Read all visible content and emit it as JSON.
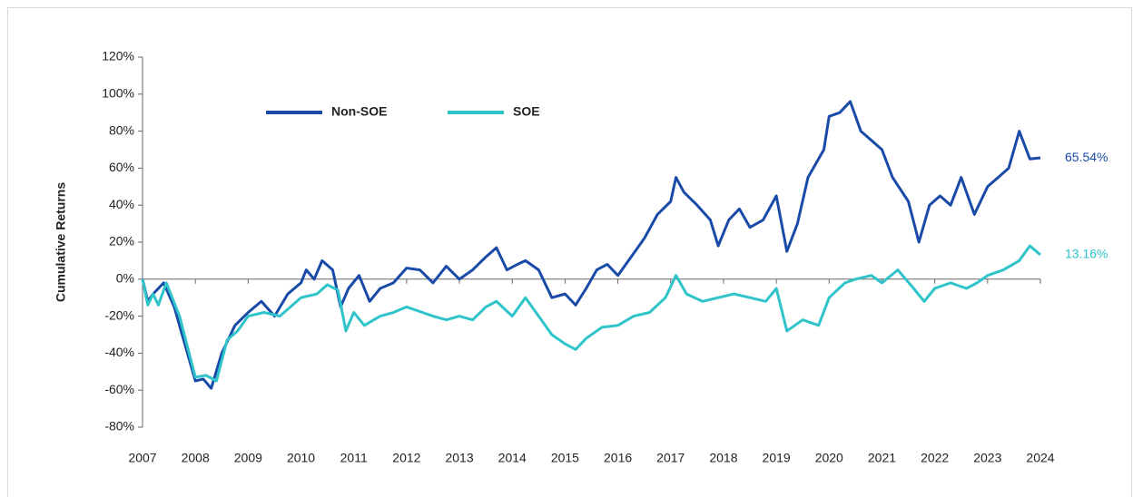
{
  "chart_data": {
    "type": "line",
    "y_label": "Cumulative Returns",
    "xlim": [
      2007,
      2024
    ],
    "xticks": [
      2007,
      2008,
      2009,
      2010,
      2011,
      2012,
      2013,
      2014,
      2015,
      2016,
      2017,
      2018,
      2019,
      2020,
      2021,
      2022,
      2023,
      2024
    ],
    "ylim": [
      -80,
      120
    ],
    "yticks": [
      {
        "value": -80,
        "label": "-80%"
      },
      {
        "value": -60,
        "label": "-60%"
      },
      {
        "value": -40,
        "label": "-40%"
      },
      {
        "value": -20,
        "label": "-20%"
      },
      {
        "value": 0,
        "label": "0%"
      },
      {
        "value": 20,
        "label": "20%"
      },
      {
        "value": 40,
        "label": "40%"
      },
      {
        "value": 60,
        "label": "60%"
      },
      {
        "value": 80,
        "label": "80%"
      },
      {
        "value": 100,
        "label": "100%"
      },
      {
        "value": 120,
        "label": "120%"
      }
    ],
    "grid": false,
    "legend": "upper-left",
    "series": [
      {
        "name": "Non-SOE",
        "color": "#1a4aa8",
        "end_label": "65.54%",
        "x": [
          2007.0,
          2007.1,
          2007.2,
          2007.4,
          2007.6,
          2007.8,
          2008.0,
          2008.15,
          2008.3,
          2008.5,
          2008.75,
          2009.0,
          2009.25,
          2009.5,
          2009.75,
          2010.0,
          2010.1,
          2010.25,
          2010.4,
          2010.6,
          2010.75,
          2010.9,
          2011.1,
          2011.3,
          2011.5,
          2011.75,
          2012.0,
          2012.25,
          2012.5,
          2012.75,
          2013.0,
          2013.25,
          2013.5,
          2013.7,
          2013.9,
          2014.1,
          2014.25,
          2014.5,
          2014.75,
          2015.0,
          2015.2,
          2015.4,
          2015.6,
          2015.8,
          2016.0,
          2016.25,
          2016.5,
          2016.75,
          2017.0,
          2017.1,
          2017.25,
          2017.5,
          2017.75,
          2017.9,
          2018.1,
          2018.3,
          2018.5,
          2018.75,
          2019.0,
          2019.2,
          2019.4,
          2019.6,
          2019.9,
          2020.0,
          2020.2,
          2020.4,
          2020.6,
          2020.8,
          2021.0,
          2021.2,
          2021.5,
          2021.7,
          2021.9,
          2022.1,
          2022.3,
          2022.5,
          2022.75,
          2023.0,
          2023.2,
          2023.4,
          2023.6,
          2023.8,
          2024.0
        ],
        "values": [
          0,
          -12,
          -8,
          -2,
          -15,
          -35,
          -55,
          -54,
          -59,
          -40,
          -25,
          -18,
          -12,
          -20,
          -8,
          -2,
          5,
          0,
          10,
          5,
          -15,
          -5,
          2,
          -12,
          -5,
          -2,
          6,
          5,
          -2,
          7,
          0,
          5,
          12,
          17,
          5,
          8,
          10,
          5,
          -10,
          -8,
          -14,
          -5,
          5,
          8,
          2,
          12,
          22,
          35,
          42,
          55,
          47,
          40,
          32,
          18,
          32,
          38,
          28,
          32,
          45,
          15,
          30,
          55,
          70,
          88,
          90,
          96,
          80,
          75,
          70,
          55,
          42,
          20,
          40,
          45,
          40,
          55,
          35,
          50,
          55,
          60,
          80,
          65,
          65.54
        ]
      },
      {
        "name": "SOE",
        "color": "#2ec4c9",
        "end_label": "13.16%",
        "x": [
          2007.0,
          2007.1,
          2007.2,
          2007.3,
          2007.45,
          2007.7,
          2008.0,
          2008.2,
          2008.4,
          2008.6,
          2008.8,
          2009.0,
          2009.3,
          2009.6,
          2009.8,
          2010.0,
          2010.3,
          2010.5,
          2010.7,
          2010.85,
          2011.0,
          2011.2,
          2011.5,
          2011.75,
          2012.0,
          2012.3,
          2012.5,
          2012.75,
          2013.0,
          2013.25,
          2013.5,
          2013.7,
          2014.0,
          2014.25,
          2014.5,
          2014.75,
          2015.0,
          2015.2,
          2015.4,
          2015.7,
          2016.0,
          2016.3,
          2016.6,
          2016.9,
          2017.1,
          2017.3,
          2017.6,
          2017.9,
          2018.2,
          2018.5,
          2018.8,
          2019.0,
          2019.2,
          2019.5,
          2019.8,
          2020.0,
          2020.3,
          2020.5,
          2020.8,
          2021.0,
          2021.3,
          2021.6,
          2021.8,
          2022.0,
          2022.3,
          2022.6,
          2022.8,
          2023.0,
          2023.3,
          2023.6,
          2023.8,
          2024.0
        ],
        "values": [
          0,
          -14,
          -8,
          -14,
          -2,
          -20,
          -53,
          -52,
          -55,
          -33,
          -28,
          -20,
          -18,
          -20,
          -15,
          -10,
          -8,
          -3,
          -6,
          -28,
          -18,
          -25,
          -20,
          -18,
          -15,
          -18,
          -20,
          -22,
          -20,
          -22,
          -15,
          -12,
          -20,
          -10,
          -20,
          -30,
          -35,
          -38,
          -32,
          -26,
          -25,
          -20,
          -18,
          -10,
          2,
          -8,
          -12,
          -10,
          -8,
          -10,
          -12,
          -5,
          -28,
          -22,
          -25,
          -10,
          -2,
          0,
          2,
          -2,
          5,
          -5,
          -12,
          -5,
          -2,
          -5,
          -2,
          2,
          5,
          10,
          18,
          13.16
        ]
      }
    ]
  }
}
